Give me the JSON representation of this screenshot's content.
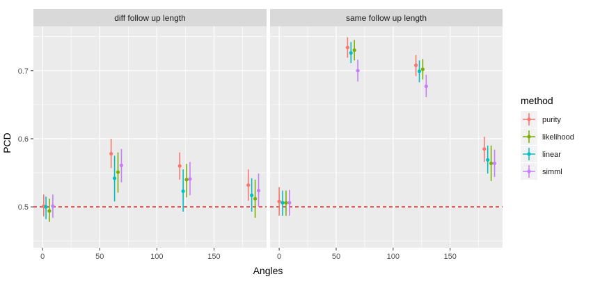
{
  "chart_data": {
    "type": "errorbar",
    "xlabel": "Angles",
    "ylabel": "PCD",
    "xlim": [
      -8,
      196
    ],
    "ylim": [
      0.44,
      0.765
    ],
    "x_ticks": [
      0,
      50,
      100,
      150
    ],
    "y_ticks": [
      0.5,
      0.6,
      0.7
    ],
    "reference_line": {
      "y": 0.5,
      "color": "#ff0000",
      "style": "dashed"
    },
    "grid": true,
    "legend": {
      "title": "method",
      "placement": "right",
      "entries": [
        {
          "name": "purity",
          "color": "#F8766D"
        },
        {
          "name": "likelihood",
          "color": "#7CAE00"
        },
        {
          "name": "linear",
          "color": "#00BFC4"
        },
        {
          "name": "simml",
          "color": "#C77CFF"
        }
      ]
    },
    "panels": [
      {
        "title": "diff follow up length",
        "series": [
          {
            "name": "purity",
            "points": [
              {
                "x": 1,
                "y": 0.501,
                "lo": 0.486,
                "hi": 0.518
              },
              {
                "x": 60,
                "y": 0.578,
                "lo": 0.557,
                "hi": 0.6
              },
              {
                "x": 120,
                "y": 0.56,
                "lo": 0.54,
                "hi": 0.58
              },
              {
                "x": 180,
                "y": 0.532,
                "lo": 0.509,
                "hi": 0.555
              }
            ]
          },
          {
            "name": "likelihood",
            "points": [
              {
                "x": 6,
                "y": 0.494,
                "lo": 0.478,
                "hi": 0.512
              },
              {
                "x": 66,
                "y": 0.551,
                "lo": 0.521,
                "hi": 0.58
              },
              {
                "x": 126,
                "y": 0.54,
                "lo": 0.514,
                "hi": 0.563
              },
              {
                "x": 186,
                "y": 0.512,
                "lo": 0.484,
                "hi": 0.54
              }
            ]
          },
          {
            "name": "linear",
            "points": [
              {
                "x": 3,
                "y": 0.5,
                "lo": 0.482,
                "hi": 0.515
              },
              {
                "x": 63,
                "y": 0.542,
                "lo": 0.508,
                "hi": 0.575
              },
              {
                "x": 123,
                "y": 0.523,
                "lo": 0.493,
                "hi": 0.555
              },
              {
                "x": 183,
                "y": 0.517,
                "lo": 0.493,
                "hi": 0.542
              }
            ]
          },
          {
            "name": "simml",
            "points": [
              {
                "x": 9,
                "y": 0.501,
                "lo": 0.484,
                "hi": 0.518
              },
              {
                "x": 69,
                "y": 0.561,
                "lo": 0.536,
                "hi": 0.585
              },
              {
                "x": 129,
                "y": 0.541,
                "lo": 0.517,
                "hi": 0.566
              },
              {
                "x": 189,
                "y": 0.524,
                "lo": 0.5,
                "hi": 0.549
              }
            ]
          }
        ]
      },
      {
        "title": "same follow up length",
        "series": [
          {
            "name": "purity",
            "points": [
              {
                "x": 0,
                "y": 0.508,
                "lo": 0.487,
                "hi": 0.529
              },
              {
                "x": 60,
                "y": 0.734,
                "lo": 0.719,
                "hi": 0.749
              },
              {
                "x": 120,
                "y": 0.708,
                "lo": 0.692,
                "hi": 0.723
              },
              {
                "x": 180,
                "y": 0.585,
                "lo": 0.566,
                "hi": 0.603
              }
            ]
          },
          {
            "name": "likelihood",
            "points": [
              {
                "x": 6,
                "y": 0.506,
                "lo": 0.487,
                "hi": 0.524
              },
              {
                "x": 66,
                "y": 0.73,
                "lo": 0.715,
                "hi": 0.745
              },
              {
                "x": 126,
                "y": 0.702,
                "lo": 0.687,
                "hi": 0.717
              },
              {
                "x": 186,
                "y": 0.564,
                "lo": 0.538,
                "hi": 0.59
              }
            ]
          },
          {
            "name": "linear",
            "points": [
              {
                "x": 3,
                "y": 0.506,
                "lo": 0.487,
                "hi": 0.524
              },
              {
                "x": 63,
                "y": 0.726,
                "lo": 0.711,
                "hi": 0.742
              },
              {
                "x": 123,
                "y": 0.699,
                "lo": 0.683,
                "hi": 0.715
              },
              {
                "x": 183,
                "y": 0.569,
                "lo": 0.549,
                "hi": 0.59
              }
            ]
          },
          {
            "name": "simml",
            "points": [
              {
                "x": 9,
                "y": 0.506,
                "lo": 0.487,
                "hi": 0.525
              },
              {
                "x": 69,
                "y": 0.7,
                "lo": 0.684,
                "hi": 0.716
              },
              {
                "x": 129,
                "y": 0.677,
                "lo": 0.661,
                "hi": 0.694
              },
              {
                "x": 189,
                "y": 0.564,
                "lo": 0.544,
                "hi": 0.584
              }
            ]
          }
        ]
      }
    ]
  }
}
